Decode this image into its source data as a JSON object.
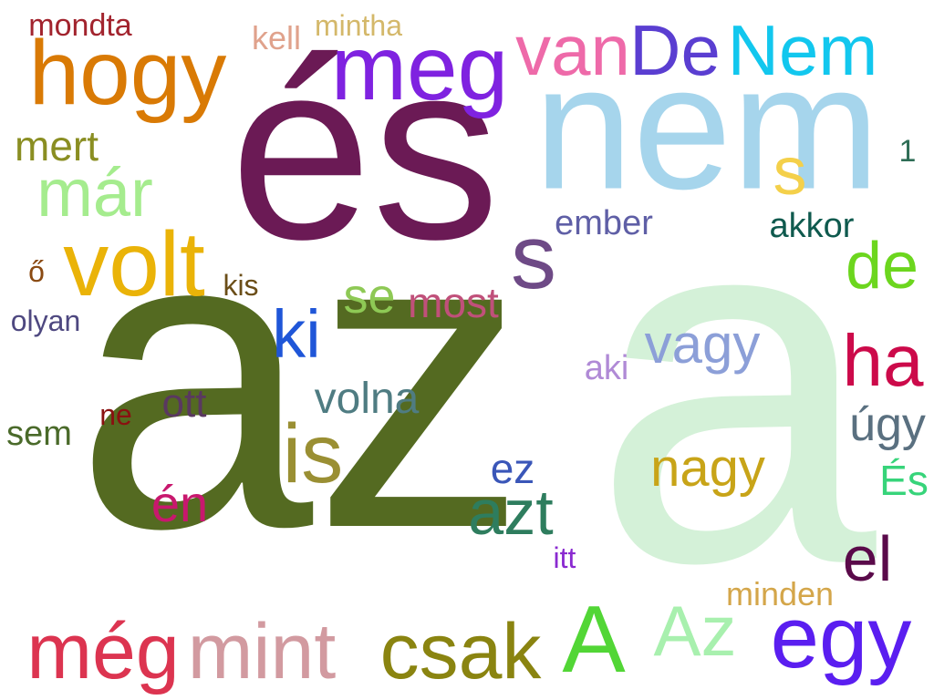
{
  "background": "#ffffff",
  "words": [
    {
      "text": "a",
      "color": "#d4f1d8"
    },
    {
      "text": "az",
      "color": "#546a21"
    },
    {
      "text": "és",
      "color": "#6b1a55"
    },
    {
      "text": "nem",
      "color": "#a6d5ec"
    },
    {
      "text": "hogy",
      "color": "#d97a05"
    },
    {
      "text": "meg",
      "color": "#7f22e0"
    },
    {
      "text": "van",
      "color": "#ee6aa9"
    },
    {
      "text": "De",
      "color": "#5a3ed1"
    },
    {
      "text": "Nem",
      "color": "#12c7ee"
    },
    {
      "text": "mondta",
      "color": "#a2242e"
    },
    {
      "text": "kell",
      "color": "#e0a28c"
    },
    {
      "text": "mintha",
      "color": "#d4b86a"
    },
    {
      "text": "mert",
      "color": "#8a8e22"
    },
    {
      "text": "már",
      "color": "#a5ec8e"
    },
    {
      "text": "volt",
      "color": "#eab308"
    },
    {
      "text": "s",
      "color": "#6e4a86"
    },
    {
      "text": "s",
      "color": "#f4d04a"
    },
    {
      "text": "1",
      "color": "#2e6d55"
    },
    {
      "text": "ember",
      "color": "#5f5fa6"
    },
    {
      "text": "akkor",
      "color": "#0f5a4e"
    },
    {
      "text": "de",
      "color": "#6cd61e"
    },
    {
      "text": "ő",
      "color": "#8a4a12"
    },
    {
      "text": "kis",
      "color": "#6b4e18"
    },
    {
      "text": "se",
      "color": "#8ec955"
    },
    {
      "text": "most",
      "color": "#c0507a"
    },
    {
      "text": "olyan",
      "color": "#4e4880"
    },
    {
      "text": "ki",
      "color": "#1f56d8"
    },
    {
      "text": "vagy",
      "color": "#8c9fd8"
    },
    {
      "text": "aki",
      "color": "#b08ad6"
    },
    {
      "text": "ha",
      "color": "#cc0a4a"
    },
    {
      "text": "volna",
      "color": "#4f7c82"
    },
    {
      "text": "ott",
      "color": "#5a3860"
    },
    {
      "text": "ne",
      "color": "#8a1010"
    },
    {
      "text": "sem",
      "color": "#4a6a2a"
    },
    {
      "text": "is",
      "color": "#9a8f33"
    },
    {
      "text": "úgy",
      "color": "#5a7080"
    },
    {
      "text": "ez",
      "color": "#3a56b8"
    },
    {
      "text": "nagy",
      "color": "#c8a418"
    },
    {
      "text": "azt",
      "color": "#2e7d5e"
    },
    {
      "text": "én",
      "color": "#c8186e"
    },
    {
      "text": "És",
      "color": "#37d47a"
    },
    {
      "text": "el",
      "color": "#5a0a4a"
    },
    {
      "text": "itt",
      "color": "#8a2ad0"
    },
    {
      "text": "minden",
      "color": "#d4a64a"
    },
    {
      "text": "még",
      "color": "#dc3450"
    },
    {
      "text": "mint",
      "color": "#d29aa0"
    },
    {
      "text": "csak",
      "color": "#8a8410"
    },
    {
      "text": "A",
      "color": "#52d636"
    },
    {
      "text": "Az",
      "color": "#a8f0ae"
    },
    {
      "text": "egy",
      "color": "#5a1ef0"
    }
  ]
}
